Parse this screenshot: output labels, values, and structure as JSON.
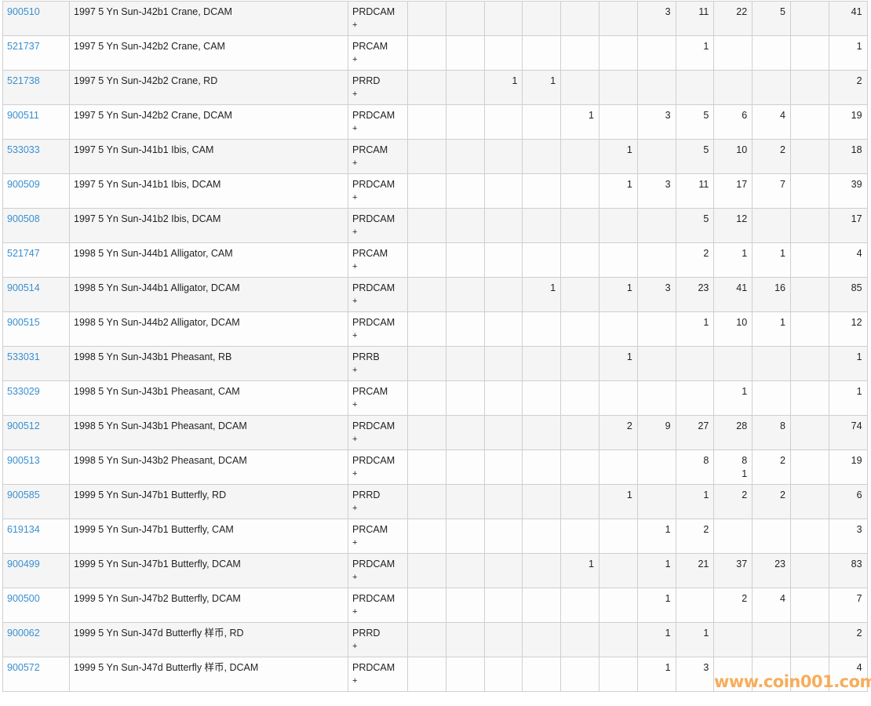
{
  "table": {
    "rows": [
      {
        "id": "900510",
        "desc": "1997 5 Yn Sun-J42b1 Crane, DCAM",
        "grade": "PRDCAM",
        "plus": "+",
        "counts": [
          "",
          "",
          "",
          "",
          "",
          "",
          "3",
          "11",
          "22",
          "5",
          "",
          "41"
        ]
      },
      {
        "id": "521737",
        "desc": "1997 5 Yn Sun-J42b2 Crane, CAM",
        "grade": "PRCAM",
        "plus": "+",
        "counts": [
          "",
          "",
          "",
          "",
          "",
          "",
          "",
          "1",
          "",
          "",
          "",
          "1"
        ]
      },
      {
        "id": "521738",
        "desc": "1997 5 Yn Sun-J42b2 Crane, RD",
        "grade": "PRRD",
        "plus": "+",
        "counts": [
          "",
          "",
          "1",
          "1",
          "",
          "",
          "",
          "",
          "",
          "",
          "",
          "2"
        ]
      },
      {
        "id": "900511",
        "desc": "1997 5 Yn Sun-J42b2 Crane, DCAM",
        "grade": "PRDCAM",
        "plus": "+",
        "counts": [
          "",
          "",
          "",
          "",
          "1",
          "",
          "3",
          "5",
          "6",
          "4",
          "",
          "19"
        ]
      },
      {
        "id": "533033",
        "desc": "1997 5 Yn Sun-J41b1 Ibis, CAM",
        "grade": "PRCAM",
        "plus": "+",
        "counts": [
          "",
          "",
          "",
          "",
          "",
          "1",
          "",
          "5",
          "10",
          "2",
          "",
          "18"
        ]
      },
      {
        "id": "900509",
        "desc": "1997 5 Yn Sun-J41b1 Ibis, DCAM",
        "grade": "PRDCAM",
        "plus": "+",
        "counts": [
          "",
          "",
          "",
          "",
          "",
          "1",
          "3",
          "11",
          "17",
          "7",
          "",
          "39"
        ]
      },
      {
        "id": "900508",
        "desc": "1997 5 Yn Sun-J41b2 Ibis, DCAM",
        "grade": "PRDCAM",
        "plus": "+",
        "counts": [
          "",
          "",
          "",
          "",
          "",
          "",
          "",
          "5",
          "12",
          "",
          "",
          "17"
        ]
      },
      {
        "id": "521747",
        "desc": "1998 5 Yn Sun-J44b1 Alligator, CAM",
        "grade": "PRCAM",
        "plus": "+",
        "counts": [
          "",
          "",
          "",
          "",
          "",
          "",
          "",
          "2",
          "1",
          "1",
          "",
          "4"
        ]
      },
      {
        "id": "900514",
        "desc": "1998 5 Yn Sun-J44b1 Alligator, DCAM",
        "grade": "PRDCAM",
        "plus": "+",
        "counts": [
          "",
          "",
          "",
          "1",
          "",
          "1",
          "3",
          "23",
          "41",
          "16",
          "",
          "85"
        ]
      },
      {
        "id": "900515",
        "desc": "1998 5 Yn Sun-J44b2 Alligator, DCAM",
        "grade": "PRDCAM",
        "plus": "+",
        "counts": [
          "",
          "",
          "",
          "",
          "",
          "",
          "",
          "1",
          "10",
          "1",
          "",
          "12"
        ]
      },
      {
        "id": "533031",
        "desc": "1998 5 Yn Sun-J43b1 Pheasant, RB",
        "grade": "PRRB",
        "plus": "+",
        "counts": [
          "",
          "",
          "",
          "",
          "",
          "1",
          "",
          "",
          "",
          "",
          "",
          "1"
        ]
      },
      {
        "id": "533029",
        "desc": "1998 5 Yn Sun-J43b1 Pheasant, CAM",
        "grade": "PRCAM",
        "plus": "+",
        "counts": [
          "",
          "",
          "",
          "",
          "",
          "",
          "",
          "",
          "1",
          "",
          "",
          "1"
        ]
      },
      {
        "id": "900512",
        "desc": "1998 5 Yn Sun-J43b1 Pheasant, DCAM",
        "grade": "PRDCAM",
        "plus": "+",
        "counts": [
          "",
          "",
          "",
          "",
          "",
          "2",
          "9",
          "27",
          "28",
          "8",
          "",
          "74"
        ]
      },
      {
        "id": "900513",
        "desc": "1998 5 Yn Sun-J43b2 Pheasant, DCAM",
        "grade": "PRDCAM",
        "plus": "+",
        "counts": [
          "",
          "",
          "",
          "",
          "",
          "",
          "",
          "8",
          "8\n1",
          "2",
          "",
          "19"
        ]
      },
      {
        "id": "900585",
        "desc": "1999 5 Yn Sun-J47b1 Butterfly, RD",
        "grade": "PRRD",
        "plus": "+",
        "counts": [
          "",
          "",
          "",
          "",
          "",
          "1",
          "",
          "1",
          "2",
          "2",
          "",
          "6"
        ]
      },
      {
        "id": "619134",
        "desc": "1999 5 Yn Sun-J47b1 Butterfly, CAM",
        "grade": "PRCAM",
        "plus": "+",
        "counts": [
          "",
          "",
          "",
          "",
          "",
          "",
          "1",
          "2",
          "",
          "",
          "",
          "3"
        ]
      },
      {
        "id": "900499",
        "desc": "1999 5 Yn Sun-J47b1 Butterfly, DCAM",
        "grade": "PRDCAM",
        "plus": "+",
        "counts": [
          "",
          "",
          "",
          "",
          "1",
          "",
          "1",
          "21",
          "37",
          "23",
          "",
          "83"
        ]
      },
      {
        "id": "900500",
        "desc": "1999 5 Yn Sun-J47b2 Butterfly, DCAM",
        "grade": "PRDCAM",
        "plus": "+",
        "counts": [
          "",
          "",
          "",
          "",
          "",
          "",
          "1",
          "",
          "2",
          "4",
          "",
          "7"
        ]
      },
      {
        "id": "900062",
        "desc": "1999 5 Yn Sun-J47d Butterfly 样币, RD",
        "grade": "PRRD",
        "plus": "+",
        "counts": [
          "",
          "",
          "",
          "",
          "",
          "",
          "1",
          "1",
          "",
          "",
          "",
          "2"
        ]
      },
      {
        "id": "900572",
        "desc": "1999 5 Yn Sun-J47d Butterfly 样币, DCAM",
        "grade": "PRDCAM",
        "plus": "+",
        "counts": [
          "",
          "",
          "",
          "",
          "",
          "",
          "1",
          "3",
          "",
          "",
          "",
          "4"
        ]
      }
    ]
  },
  "watermark": "www.coin001.com",
  "colors": {
    "link": "#3a8fd0",
    "watermark": "#f7a54a",
    "row_alt": "#f5f5f5",
    "border": "#cfcfcf"
  }
}
